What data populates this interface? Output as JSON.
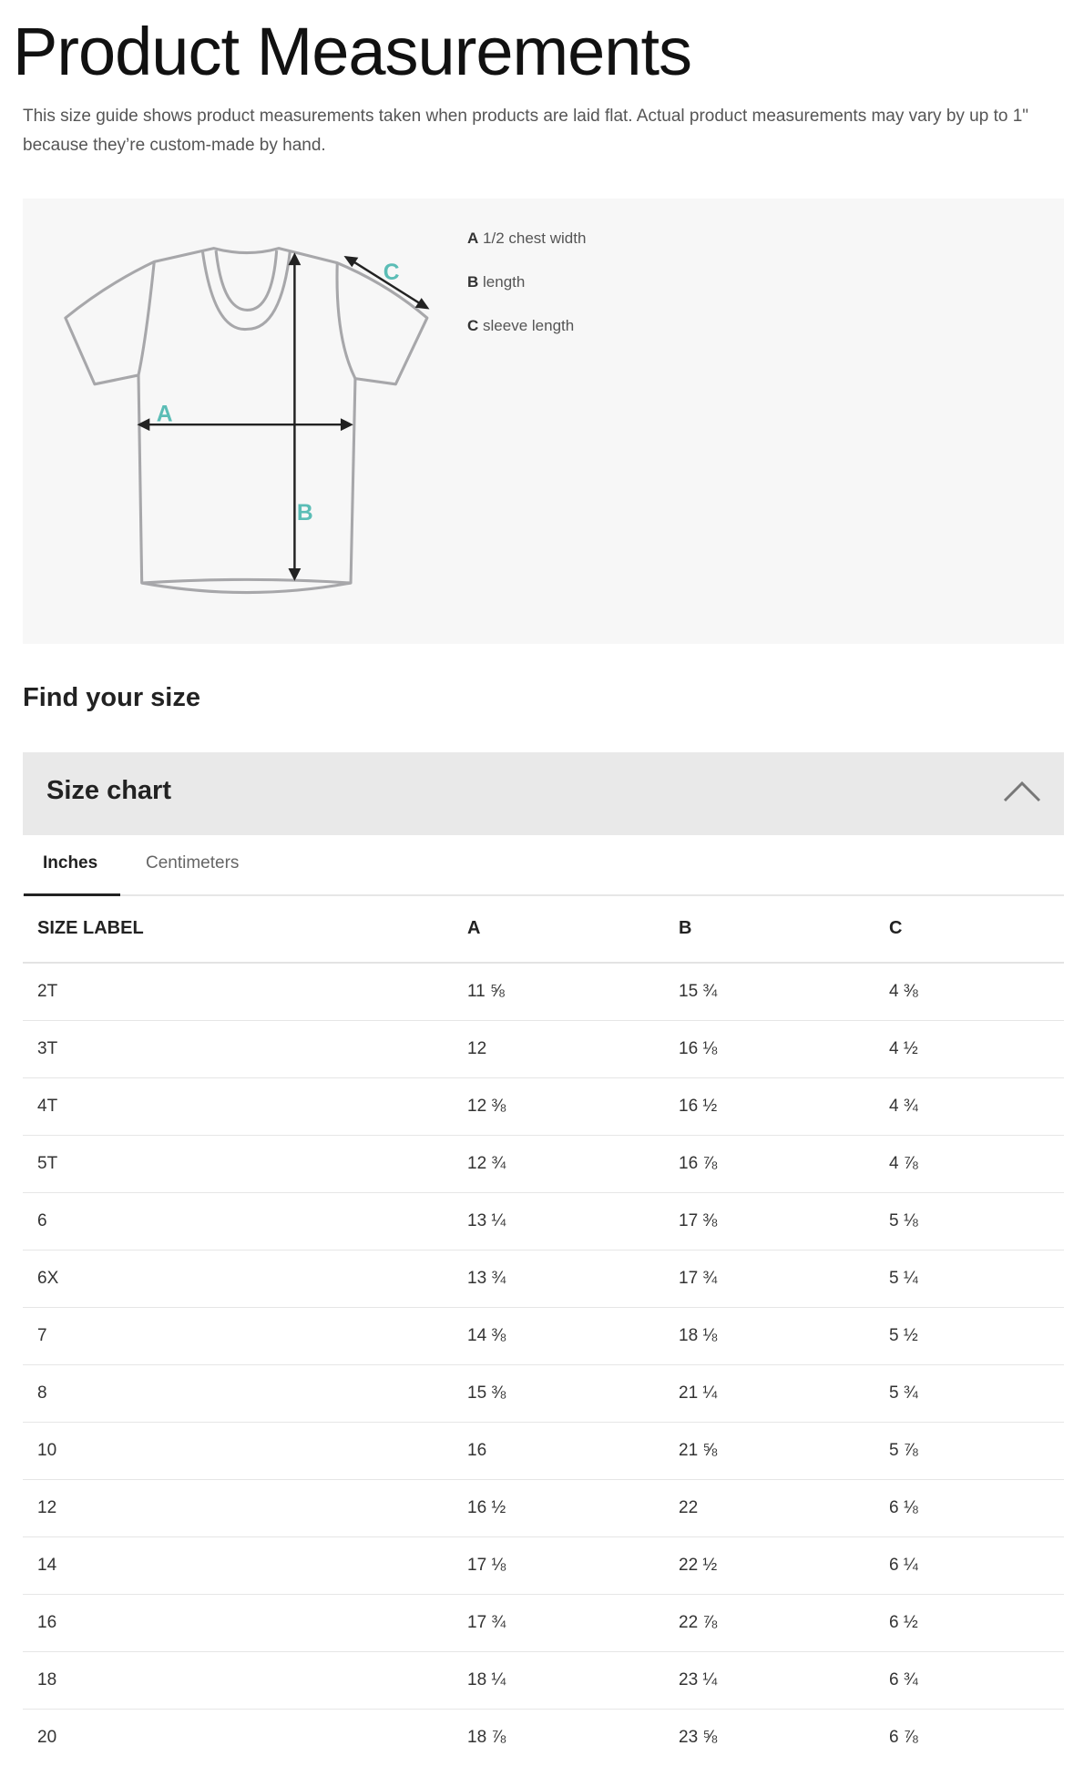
{
  "title": "Product Measurements",
  "description": "This size guide shows product measurements taken when products are laid flat. Actual product measurements may vary by up to 1\" because they’re custom-made by hand.",
  "diagram": {
    "marker_color": "#5bbdb6",
    "labels": [
      "A",
      "B",
      "C"
    ],
    "legend": [
      {
        "key": "A",
        "text": "1/2 chest width"
      },
      {
        "key": "B",
        "text": "length"
      },
      {
        "key": "C",
        "text": "sleeve length"
      }
    ]
  },
  "find_size": "Find your size",
  "size_chart": {
    "title": "Size chart",
    "expanded": true,
    "tabs": [
      {
        "label": "Inches",
        "active": true
      },
      {
        "label": "Centimeters",
        "active": false
      }
    ],
    "headers": [
      "SIZE LABEL",
      "A",
      "B",
      "C"
    ],
    "rows": [
      [
        "2T",
        "11 ⅝",
        "15 ¾",
        "4 ⅜"
      ],
      [
        "3T",
        "12",
        "16 ⅛",
        "4 ½"
      ],
      [
        "4T",
        "12 ⅜",
        "16 ½",
        "4 ¾"
      ],
      [
        "5T",
        "12 ¾",
        "16 ⅞",
        "4 ⅞"
      ],
      [
        "6",
        "13 ¼",
        "17 ⅜",
        "5 ⅛"
      ],
      [
        "6X",
        "13 ¾",
        "17 ¾",
        "5 ¼"
      ],
      [
        "7",
        "14 ⅜",
        "18 ⅛",
        "5 ½"
      ],
      [
        "8",
        "15 ⅜",
        "21 ¼",
        "5 ¾"
      ],
      [
        "10",
        "16",
        "21 ⅝",
        "5 ⅞"
      ],
      [
        "12",
        "16 ½",
        "22",
        "6 ⅛"
      ],
      [
        "14",
        "17 ⅛",
        "22 ½",
        "6 ¼"
      ],
      [
        "16",
        "17 ¾",
        "22 ⅞",
        "6 ½"
      ],
      [
        "18",
        "18 ¼",
        "23 ¼",
        "6 ¾"
      ],
      [
        "20",
        "18 ⅞",
        "23 ⅝",
        "6 ⅞"
      ]
    ]
  }
}
